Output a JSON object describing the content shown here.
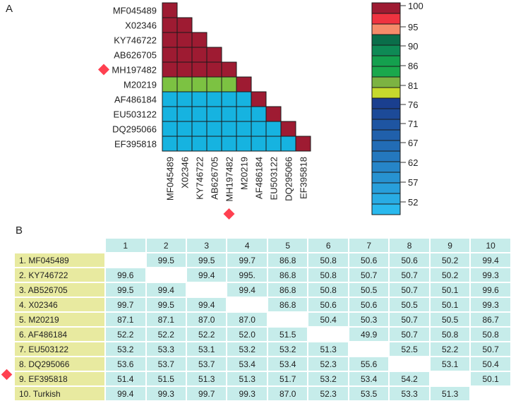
{
  "panel_a_label": "A",
  "panel_b_label": "B",
  "marker_color": "#ff4050",
  "chart_data": {
    "type": "heatmap",
    "title": "",
    "labels": [
      "MF045489",
      "X02346",
      "KY746722",
      "AB626705",
      "MH197482",
      "M20219",
      "AF486184",
      "EU503122",
      "DQ295066",
      "EF395818"
    ],
    "highlighted_label": "MH197482",
    "cell_colors": [
      [
        "#9e1b32"
      ],
      [
        "#9e1b32",
        "#9e1b32"
      ],
      [
        "#9e1b32",
        "#9e1b32",
        "#9e1b32"
      ],
      [
        "#9e1b32",
        "#9e1b32",
        "#9e1b32",
        "#9e1b32"
      ],
      [
        "#9e1b32",
        "#9e1b32",
        "#9e1b32",
        "#9e1b32",
        "#9e1b32"
      ],
      [
        "#7cc242",
        "#7cc242",
        "#7cc242",
        "#7cc242",
        "#7cc242",
        "#9e1b32"
      ],
      [
        "#16b3e0",
        "#16b3e0",
        "#16b3e0",
        "#16b3e0",
        "#16b3e0",
        "#16b3e0",
        "#9e1b32"
      ],
      [
        "#16b3e0",
        "#16b3e0",
        "#16b3e0",
        "#16b3e0",
        "#16b3e0",
        "#16b3e0",
        "#16b3e0",
        "#9e1b32"
      ],
      [
        "#16b3e0",
        "#16b3e0",
        "#16b3e0",
        "#16b3e0",
        "#16b3e0",
        "#16b3e0",
        "#16b3e0",
        "#16b3e0",
        "#9e1b32"
      ],
      [
        "#16b3e0",
        "#16b3e0",
        "#16b3e0",
        "#16b3e0",
        "#16b3e0",
        "#16b3e0",
        "#16b3e0",
        "#16b3e0",
        "#16b3e0",
        "#9e1b32"
      ]
    ],
    "color_scale": {
      "tick_labels": [
        "100",
        "95",
        "90",
        "86",
        "81",
        "76",
        "71",
        "67",
        "62",
        "57",
        "52"
      ],
      "bands": [
        "#9e1b32",
        "#ef3340",
        "#f58b6a",
        "#0a6e4a",
        "#0e8a55",
        "#14a04e",
        "#1aa84c",
        "#7cb342",
        "#c5d92d",
        "#1a3f8f",
        "#1c4a98",
        "#1e55a2",
        "#2060ab",
        "#226cb5",
        "#2478be",
        "#2685c8",
        "#2792d1",
        "#289fdb",
        "#29ace4",
        "#2ab9ee"
      ]
    }
  },
  "table_b": {
    "columns": [
      "1",
      "2",
      "3",
      "4",
      "5",
      "6",
      "7",
      "8",
      "9",
      "10"
    ],
    "highlighted_row": 9,
    "rows": [
      {
        "name": "1. MF045489",
        "values": [
          "",
          "99.5",
          "99.5",
          "99.7",
          "86.8",
          "50.8",
          "50.6",
          "50.6",
          "50.2",
          "99.4"
        ]
      },
      {
        "name": "2. KY746722",
        "values": [
          "99.6",
          "",
          "99.4",
          "995.",
          "86.8",
          "50.8",
          "50.7",
          "50.7",
          "50.2",
          "99.3"
        ]
      },
      {
        "name": "3. AB526705",
        "values": [
          "99.5",
          "99.4",
          "",
          "99.4",
          "86.8",
          "50.8",
          "50.5",
          "50.7",
          "50.1",
          "99.6"
        ]
      },
      {
        "name": "4. X02346",
        "values": [
          "99.7",
          "99.5",
          "99.4",
          "",
          "86.8",
          "50.6",
          "50.6",
          "50.5",
          "50.1",
          "99.3"
        ]
      },
      {
        "name": "5. M20219",
        "values": [
          "87.1",
          "87.1",
          "87.0",
          "87.0",
          "",
          "50.4",
          "50.3",
          "50.7",
          "50.5",
          "86.7"
        ]
      },
      {
        "name": "6. AF486184",
        "values": [
          "52.2",
          "52.2",
          "52.2",
          "52.0",
          "51.5",
          "",
          "49.9",
          "50.7",
          "50.8",
          "50.8"
        ]
      },
      {
        "name": "7. EU503122",
        "values": [
          "53.2",
          "53.3",
          "53.1",
          "53.2",
          "53.2",
          "51.3",
          "",
          "52.5",
          "52.2",
          "50.7"
        ]
      },
      {
        "name": "8. DQ295066",
        "values": [
          "53.6",
          "53.7",
          "53.7",
          "53.4",
          "53.4",
          "52.3",
          "55.6",
          "",
          "53.1",
          "50.4"
        ]
      },
      {
        "name": "9. EF395818",
        "values": [
          "51.4",
          "51.5",
          "51.3",
          "51.3",
          "51.7",
          "53.2",
          "53.4",
          "54.2",
          "",
          "50.1"
        ]
      },
      {
        "name": "10. Turkish",
        "values": [
          "99.4",
          "99.3",
          "99.7",
          "99.3",
          "87.0",
          "52.3",
          "53.5",
          "53.3",
          "51.3",
          ""
        ]
      }
    ]
  }
}
